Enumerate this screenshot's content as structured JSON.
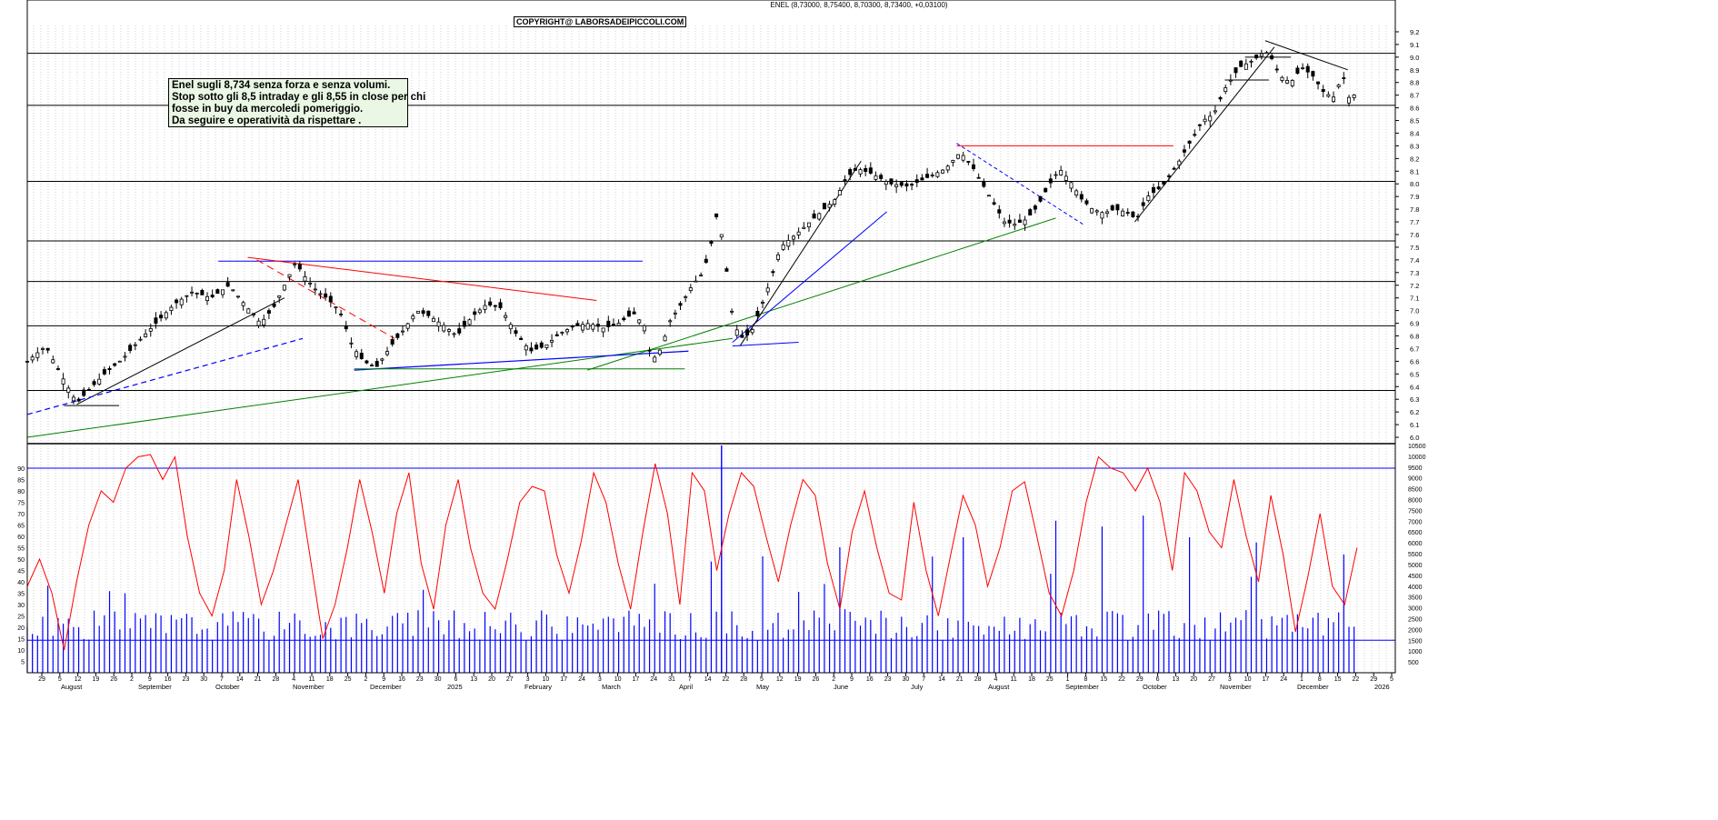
{
  "header": {
    "quote": "ENEL (8,73000, 8,75400, 8,70300, 8,73400, +0,03100)",
    "copyright": "COPYRIGHT@ LABORSADEIPICCOLI.COM"
  },
  "note": {
    "lines": [
      "Enel sugli 8,734 senza forza e senza volumi.",
      "Stop sotto gli 8,5 intraday e gli 8,55 in close per chi",
      "fosse in buy da mercoledi pomeriggio.",
      "Da seguire e operatività da rispettare ."
    ]
  },
  "colors": {
    "background": "#ffffff",
    "grid": "#b4b4b4",
    "candle": "#000000",
    "red": "#ff0000",
    "blue": "#0000ff",
    "green": "#008000"
  },
  "chart_data": [
    {
      "type": "candlestick",
      "title": "ENEL",
      "ylim": [
        5.95,
        9.25
      ],
      "y_ticks": [
        "6.0",
        "6.1",
        "6.2",
        "6.3",
        "6.4",
        "6.5",
        "6.6",
        "6.7",
        "6.8",
        "6.9",
        "7.0",
        "7.1",
        "7.2",
        "7.3",
        "7.4",
        "7.5",
        "7.6",
        "7.7",
        "7.8",
        "7.9",
        "8.0",
        "8.1",
        "8.2",
        "8.3",
        "8.4",
        "8.5",
        "8.6",
        "8.7",
        "8.8",
        "8.9",
        "9.0",
        "9.1",
        "9.2"
      ],
      "horizontal_levels": [
        6.37,
        6.88,
        7.23,
        7.55,
        8.02,
        8.62,
        9.03
      ],
      "close_points": [
        {
          "x": 0,
          "y": 6.6
        },
        {
          "x": 10,
          "y": 6.72
        },
        {
          "x": 20,
          "y": 6.45
        },
        {
          "x": 27,
          "y": 6.27
        },
        {
          "x": 34,
          "y": 6.38
        },
        {
          "x": 42,
          "y": 6.5
        },
        {
          "x": 52,
          "y": 6.62
        },
        {
          "x": 60,
          "y": 6.75
        },
        {
          "x": 70,
          "y": 6.9
        },
        {
          "x": 80,
          "y": 7.05
        },
        {
          "x": 90,
          "y": 7.15
        },
        {
          "x": 100,
          "y": 7.1
        },
        {
          "x": 110,
          "y": 7.2
        },
        {
          "x": 120,
          "y": 7.02
        },
        {
          "x": 127,
          "y": 6.9
        },
        {
          "x": 134,
          "y": 7.02
        },
        {
          "x": 140,
          "y": 7.2
        },
        {
          "x": 146,
          "y": 7.38
        },
        {
          "x": 152,
          "y": 7.25
        },
        {
          "x": 158,
          "y": 7.15
        },
        {
          "x": 163,
          "y": 7.1
        },
        {
          "x": 170,
          "y": 7.0
        },
        {
          "x": 177,
          "y": 6.72
        },
        {
          "x": 183,
          "y": 6.6
        },
        {
          "x": 190,
          "y": 6.55
        },
        {
          "x": 198,
          "y": 6.72
        },
        {
          "x": 205,
          "y": 6.85
        },
        {
          "x": 212,
          "y": 7.0
        },
        {
          "x": 220,
          "y": 6.95
        },
        {
          "x": 227,
          "y": 6.88
        },
        {
          "x": 234,
          "y": 6.8
        },
        {
          "x": 242,
          "y": 6.95
        },
        {
          "x": 250,
          "y": 7.05
        },
        {
          "x": 258,
          "y": 7.02
        },
        {
          "x": 266,
          "y": 6.82
        },
        {
          "x": 274,
          "y": 6.68
        },
        {
          "x": 282,
          "y": 6.72
        },
        {
          "x": 290,
          "y": 6.82
        },
        {
          "x": 298,
          "y": 6.88
        },
        {
          "x": 306,
          "y": 6.9
        },
        {
          "x": 314,
          "y": 6.86
        },
        {
          "x": 322,
          "y": 6.9
        },
        {
          "x": 330,
          "y": 6.98
        },
        {
          "x": 336,
          "y": 6.88
        },
        {
          "x": 340,
          "y": 6.6
        },
        {
          "x": 345,
          "y": 6.7
        },
        {
          "x": 350,
          "y": 6.92
        },
        {
          "x": 356,
          "y": 7.05
        },
        {
          "x": 362,
          "y": 7.2
        },
        {
          "x": 368,
          "y": 7.3
        },
        {
          "x": 372,
          "y": 7.5
        },
        {
          "x": 376,
          "y": 7.8
        },
        {
          "x": 380,
          "y": 7.4
        },
        {
          "x": 384,
          "y": 6.95
        },
        {
          "x": 388,
          "y": 6.78
        },
        {
          "x": 394,
          "y": 6.82
        },
        {
          "x": 400,
          "y": 7.05
        },
        {
          "x": 405,
          "y": 7.25
        },
        {
          "x": 410,
          "y": 7.5
        },
        {
          "x": 420,
          "y": 7.62
        },
        {
          "x": 430,
          "y": 7.75
        },
        {
          "x": 440,
          "y": 7.88
        },
        {
          "x": 446,
          "y": 8.05
        },
        {
          "x": 452,
          "y": 8.12
        },
        {
          "x": 460,
          "y": 8.08
        },
        {
          "x": 470,
          "y": 8.0
        },
        {
          "x": 480,
          "y": 7.98
        },
        {
          "x": 490,
          "y": 8.05
        },
        {
          "x": 500,
          "y": 8.12
        },
        {
          "x": 508,
          "y": 8.25
        },
        {
          "x": 514,
          "y": 8.15
        },
        {
          "x": 520,
          "y": 8.0
        },
        {
          "x": 526,
          "y": 7.85
        },
        {
          "x": 532,
          "y": 7.7
        },
        {
          "x": 538,
          "y": 7.68
        },
        {
          "x": 544,
          "y": 7.72
        },
        {
          "x": 550,
          "y": 7.82
        },
        {
          "x": 556,
          "y": 7.98
        },
        {
          "x": 562,
          "y": 8.12
        },
        {
          "x": 568,
          "y": 8.02
        },
        {
          "x": 574,
          "y": 7.88
        },
        {
          "x": 580,
          "y": 7.8
        },
        {
          "x": 586,
          "y": 7.77
        },
        {
          "x": 592,
          "y": 7.8
        },
        {
          "x": 598,
          "y": 7.78
        },
        {
          "x": 604,
          "y": 7.72
        },
        {
          "x": 610,
          "y": 7.9
        },
        {
          "x": 618,
          "y": 7.98
        },
        {
          "x": 626,
          "y": 8.15
        },
        {
          "x": 634,
          "y": 8.35
        },
        {
          "x": 640,
          "y": 8.5
        },
        {
          "x": 646,
          "y": 8.55
        },
        {
          "x": 652,
          "y": 8.75
        },
        {
          "x": 660,
          "y": 8.92
        },
        {
          "x": 668,
          "y": 8.98
        },
        {
          "x": 674,
          "y": 9.05
        },
        {
          "x": 678,
          "y": 8.98
        },
        {
          "x": 682,
          "y": 8.85
        },
        {
          "x": 688,
          "y": 8.8
        },
        {
          "x": 694,
          "y": 8.92
        },
        {
          "x": 700,
          "y": 8.85
        },
        {
          "x": 706,
          "y": 8.72
        },
        {
          "x": 712,
          "y": 8.68
        },
        {
          "x": 716,
          "y": 8.88
        },
        {
          "x": 720,
          "y": 8.66
        },
        {
          "x": 724,
          "y": 8.73
        }
      ]
    },
    {
      "type": "line",
      "ylim": [
        0,
        100
      ],
      "y_ticks": [
        "5",
        "10",
        "15",
        "20",
        "25",
        "30",
        "35",
        "40",
        "45",
        "50",
        "55",
        "60",
        "65",
        "70",
        "75",
        "80",
        "85",
        "90"
      ],
      "level": 90,
      "series": [
        {
          "values": [
            38,
            50,
            35,
            10,
            40,
            65,
            80,
            75,
            90,
            95,
            96,
            85,
            95,
            60,
            35,
            25,
            45,
            85,
            60,
            30,
            45,
            65,
            85,
            50,
            15,
            30,
            55,
            85,
            62,
            35,
            70,
            88,
            48,
            28,
            65,
            85,
            55,
            35,
            28,
            50,
            75,
            82,
            80,
            52,
            35,
            58,
            88,
            75,
            48,
            28,
            62,
            92,
            70,
            30,
            88,
            80,
            45,
            70,
            88,
            82,
            60,
            40,
            65,
            85,
            78,
            48,
            28,
            62,
            80,
            55,
            35,
            32,
            75,
            45,
            25,
            52,
            78,
            65,
            38,
            55,
            80,
            84,
            60,
            35,
            25,
            45,
            75,
            95,
            90,
            88,
            80,
            90,
            75,
            45,
            88,
            80,
            62,
            55,
            85,
            60,
            40,
            78,
            52,
            18,
            42,
            70,
            38,
            30,
            55
          ]
        }
      ]
    },
    {
      "type": "bar",
      "ylim": [
        0,
        10500
      ],
      "y_ticks": [
        "500",
        "1000",
        "1500",
        "2000",
        "2500",
        "3000",
        "3500",
        "4000",
        "4500",
        "5000",
        "5500",
        "6000",
        "6500",
        "7000",
        "7500",
        "8000",
        "8500",
        "9000",
        "9500",
        "10000",
        "10500"
      ],
      "level": 1500
    }
  ],
  "x_axis": {
    "days": [
      "29",
      "5",
      "12",
      "19",
      "26",
      "2",
      "9",
      "16",
      "23",
      "30",
      "7",
      "14",
      "21",
      "28",
      "4",
      "11",
      "18",
      "25",
      "2",
      "9",
      "16",
      "23",
      "30",
      "6",
      "13",
      "20",
      "27",
      "3",
      "10",
      "17",
      "24",
      "3",
      "10",
      "17",
      "24",
      "31",
      "7",
      "14",
      "22",
      "28",
      "5",
      "12",
      "19",
      "26",
      "2",
      "9",
      "16",
      "23",
      "30",
      "7",
      "14",
      "21",
      "28",
      "4",
      "11",
      "18",
      "25",
      "1",
      "8",
      "15",
      "22",
      "29",
      "6",
      "13",
      "20",
      "27",
      "3",
      "10",
      "17",
      "24",
      "1",
      "8",
      "15",
      "22",
      "29",
      "5"
    ],
    "months": [
      "August",
      "September",
      "October",
      "November",
      "December",
      "2025",
      "February",
      "March",
      "April",
      "May",
      "June",
      "July",
      "August",
      "September",
      "October",
      "November",
      "December",
      "2026"
    ]
  }
}
